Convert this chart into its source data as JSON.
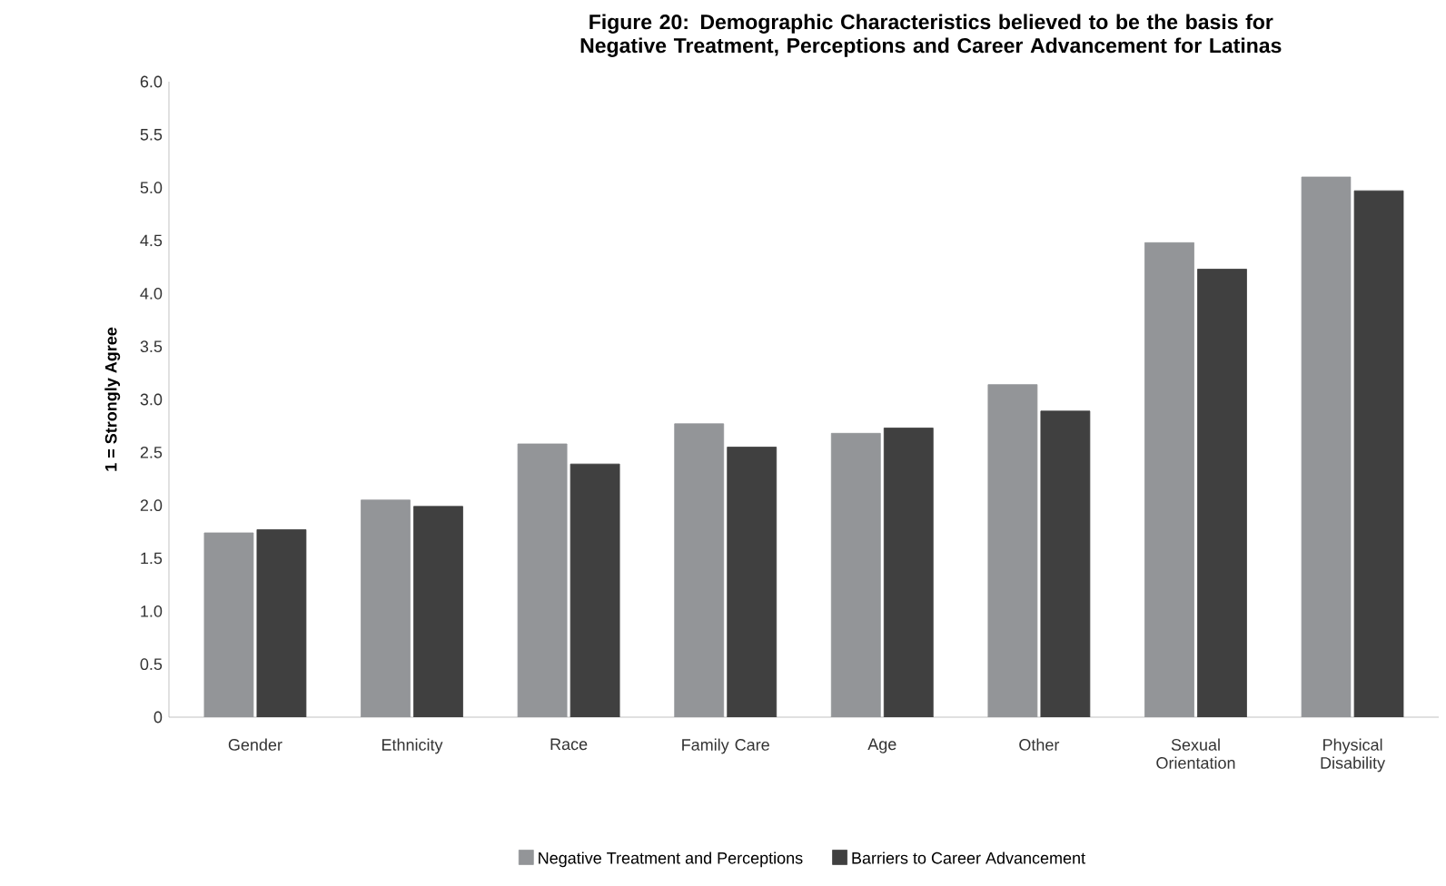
{
  "chart_data": {
    "type": "bar",
    "title": "Figure 20:  Demographic Characteristics believed to be the basis for Negative Treatment, Perceptions and Career Advancement for Latinas",
    "ylabel": "1 = Strongly Agree",
    "categories": [
      "Gender",
      "Ethnicity",
      "Race",
      "Family Care",
      "Age",
      "Other",
      "Sexual Orientation",
      "Physical Disability"
    ],
    "series": [
      {
        "name": "Negative Treatment and Perceptions",
        "color": "#939598",
        "values": [
          1.74,
          2.05,
          2.58,
          2.77,
          2.68,
          3.14,
          4.48,
          5.1
        ]
      },
      {
        "name": "Barriers to Career Advancement",
        "color": "#404040",
        "values": [
          1.77,
          1.99,
          2.39,
          2.55,
          2.73,
          2.89,
          4.23,
          4.97
        ]
      }
    ],
    "ylim": [
      0,
      6.0
    ],
    "yticks": [
      0,
      {
        "value": 0.5,
        "label": "0.5"
      },
      {
        "value": 1.0,
        "label": "1.0"
      },
      {
        "value": 1.5,
        "label": "1.5"
      },
      {
        "value": 2.0,
        "label": "2.0"
      },
      {
        "value": 2.5,
        "label": "2.5"
      },
      {
        "value": 3.0,
        "label": "3.0"
      },
      {
        "value": 3.5,
        "label": "3.5"
      },
      {
        "value": 4.0,
        "label": "4.0"
      },
      {
        "value": 4.5,
        "label": "4.5"
      },
      {
        "value": 5.0,
        "label": "5.0"
      },
      {
        "value": 5.5,
        "label": "5.5"
      },
      {
        "value": 6.0,
        "label": "6.0"
      }
    ],
    "grid": false,
    "legend": "bottom"
  }
}
